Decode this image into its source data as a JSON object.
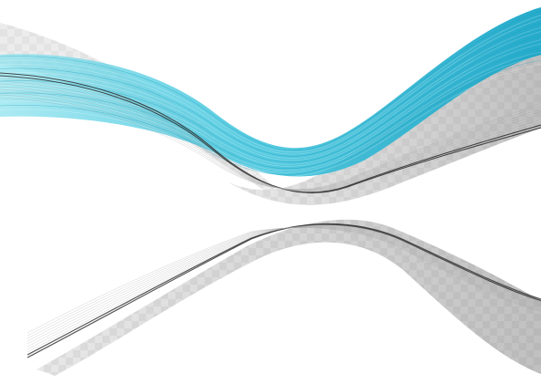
{
  "artwork": {
    "subject": "abstract-wave-ribbons",
    "colors": {
      "background": "#ffffff",
      "checker_light": "#ffffff",
      "checker_dark": "#e9e9e9",
      "ribbon_cyan_light": "#7fdcea",
      "ribbon_cyan": "#34bcd6",
      "ribbon_cyan_deep": "#1a9fc0",
      "ribbon_gray_light": "#d8d8d8",
      "ribbon_gray": "#9a9a9a",
      "ribbon_dark": "#2b2b2b"
    }
  }
}
